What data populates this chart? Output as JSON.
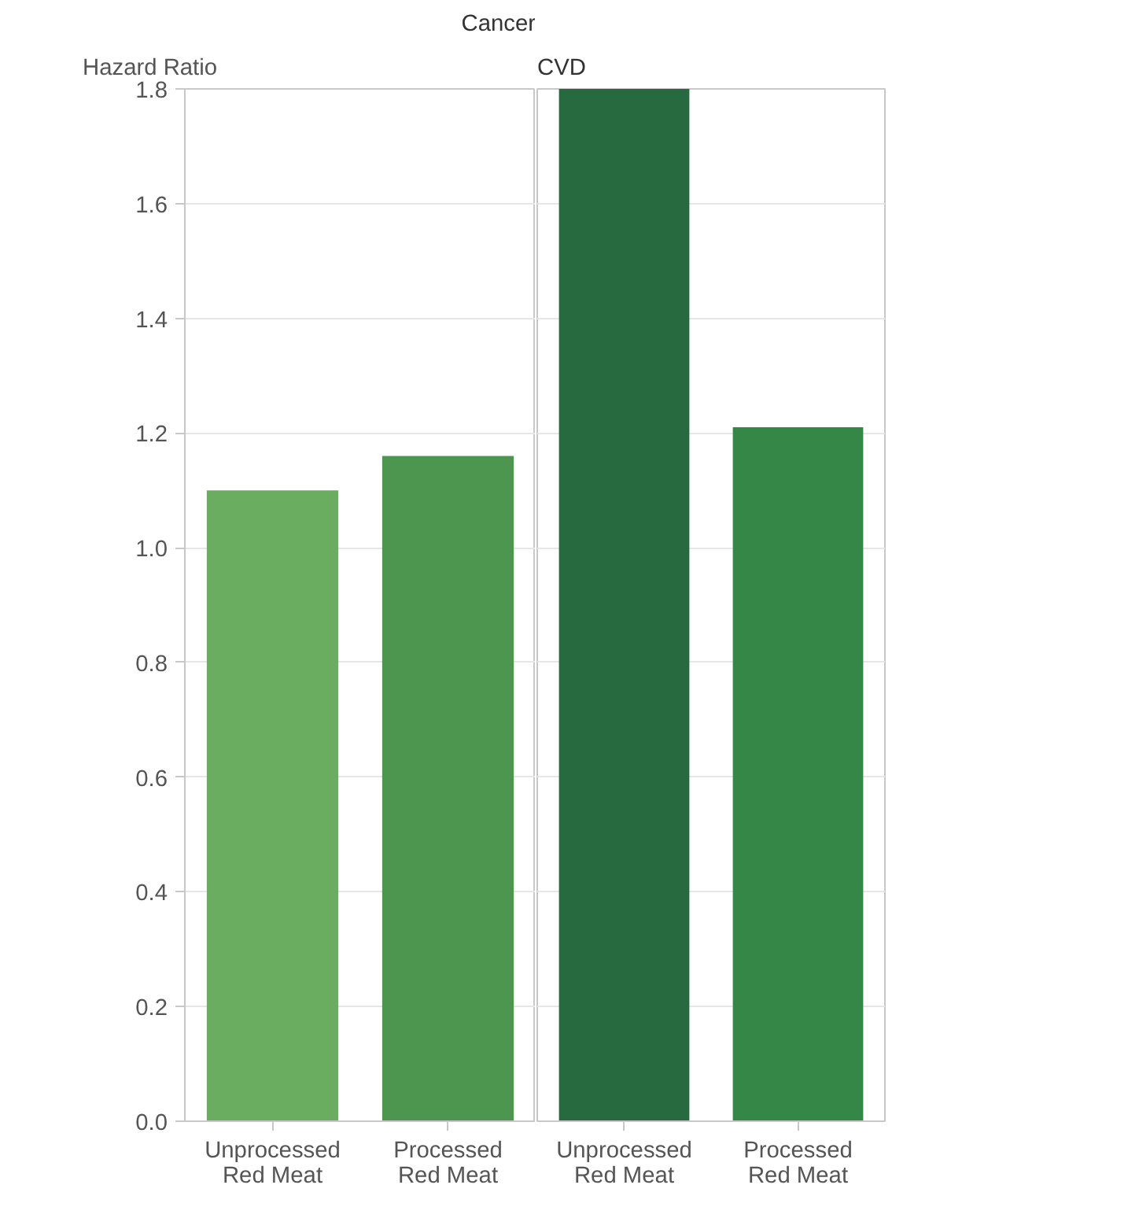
{
  "chart_data": [
    {
      "type": "bar",
      "title": "Cancer",
      "ylabel": "Hazard Ratio",
      "categories": [
        "Unprocessed Red Meat",
        "Processed Red Meat"
      ],
      "values": [
        1.1,
        1.16
      ],
      "colors": [
        "#6aad61",
        "#4c9650"
      ],
      "ylim": [
        0,
        1.8
      ],
      "yticks": [
        {
          "value": 0,
          "label": "0.0"
        },
        0.2,
        0.4,
        0.6,
        0.8,
        {
          "value": 1,
          "label": "1.0"
        },
        1.2,
        1.4,
        1.6,
        1.8
      ],
      "grid": "y"
    },
    {
      "type": "bar",
      "title": "CVD",
      "categories": [
        "Unprocessed Red Meat",
        "Processed Red Meat"
      ],
      "values": [
        1.8,
        1.21
      ],
      "colors": [
        "#276a40",
        "#358747"
      ],
      "ylim": [
        0,
        1.8
      ],
      "yticks": [
        0,
        0.2,
        0.4,
        0.6,
        0.8,
        1,
        1.2,
        1.4,
        1.6,
        1.8
      ],
      "grid": "y",
      "tick_labels": "x"
    }
  ]
}
